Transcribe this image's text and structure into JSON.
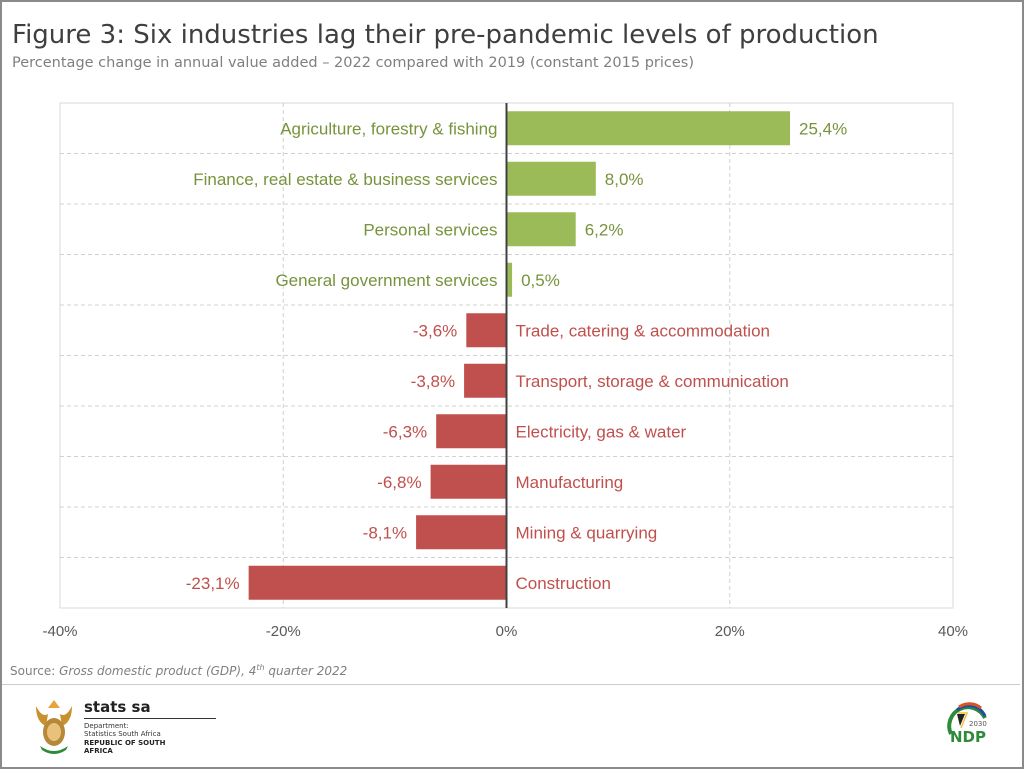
{
  "title": "Figure 3: Six industries lag their pre-pandemic levels of production",
  "subtitle": "Percentage change in annual value added – 2022 compared with 2019 (constant 2015 prices)",
  "source": {
    "prefix": "Source: ",
    "text": "Gross domestic product (GDP), 4",
    "sup": "th",
    "suffix": " quarter 2022"
  },
  "logo": {
    "name": "stats sa",
    "dept1": "Department:",
    "dept2": "Statistics South Africa",
    "country": "REPUBLIC OF SOUTH AFRICA",
    "ndp": "NDP",
    "ndp_year": "2030"
  },
  "colors": {
    "positive": "#9BBB59",
    "negative": "#C0504D",
    "positive_text": "#77933C",
    "negative_text": "#C0504D"
  },
  "chart_data": {
    "type": "bar",
    "orientation": "horizontal",
    "categories": [
      "Agriculture, forestry & fishing",
      "Finance, real estate & business services",
      "Personal services",
      "General government services",
      "Trade, catering & accommodation",
      "Transport, storage & communication",
      "Electricity, gas & water",
      "Manufacturing",
      "Mining & quarrying",
      "Construction"
    ],
    "values": [
      25.4,
      8.0,
      6.2,
      0.5,
      -3.6,
      -3.8,
      -6.3,
      -6.8,
      -8.1,
      -23.1
    ],
    "data_labels": [
      "25,4%",
      "8,0%",
      "6,2%",
      "0,5%",
      "-3,6%",
      "-3,8%",
      "-6,3%",
      "-6,8%",
      "-8,1%",
      "-23,1%"
    ],
    "xlim": [
      -40,
      40
    ],
    "xticks": [
      -40,
      -20,
      0,
      20,
      40
    ],
    "xtick_labels": [
      "-40%",
      "-20%",
      "0%",
      "20%",
      "40%"
    ],
    "grid": true,
    "xlabel": "",
    "ylabel": ""
  }
}
